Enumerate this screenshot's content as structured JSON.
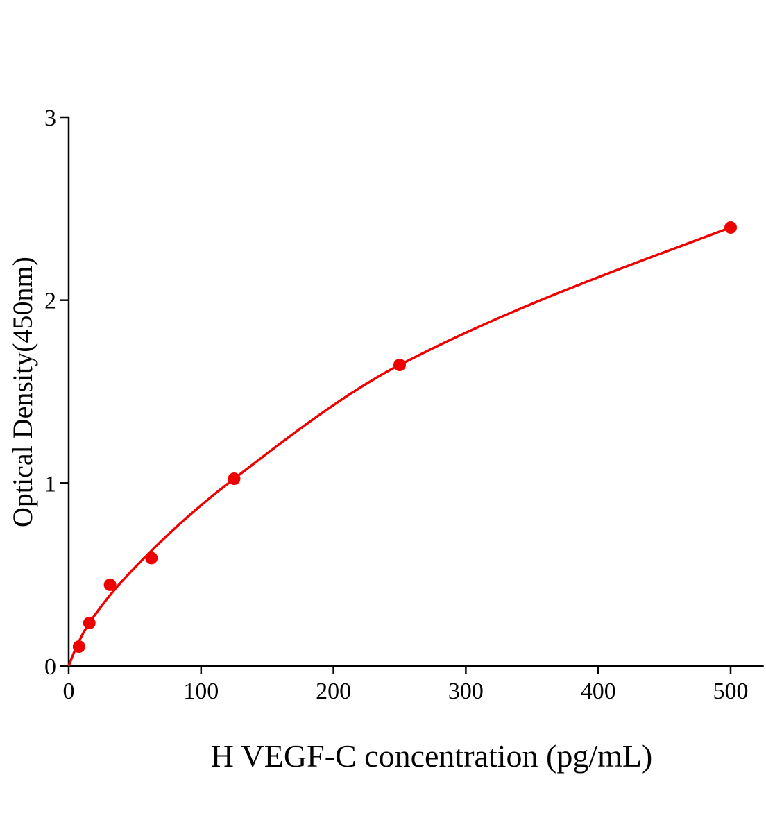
{
  "chart_data": {
    "type": "scatter",
    "title": "",
    "xlabel": "H VEGF-C concentration (pg/mL)",
    "ylabel": "Optical Density(450nm)",
    "xlim": [
      0,
      525
    ],
    "ylim": [
      0,
      3
    ],
    "xticks": [
      0,
      100,
      200,
      300,
      400,
      500
    ],
    "yticks": [
      0,
      1,
      2,
      3
    ],
    "grid": false,
    "legend": "none",
    "color": "#ee0000",
    "series": [
      {
        "x": [
          0,
          7.8,
          15.6,
          31.25,
          62.5,
          125,
          250,
          500
        ],
        "y": [
          0.0,
          0.106,
          0.235,
          0.444,
          0.59,
          1.024,
          1.646,
          2.397
        ],
        "fit_curve": true
      }
    ]
  }
}
